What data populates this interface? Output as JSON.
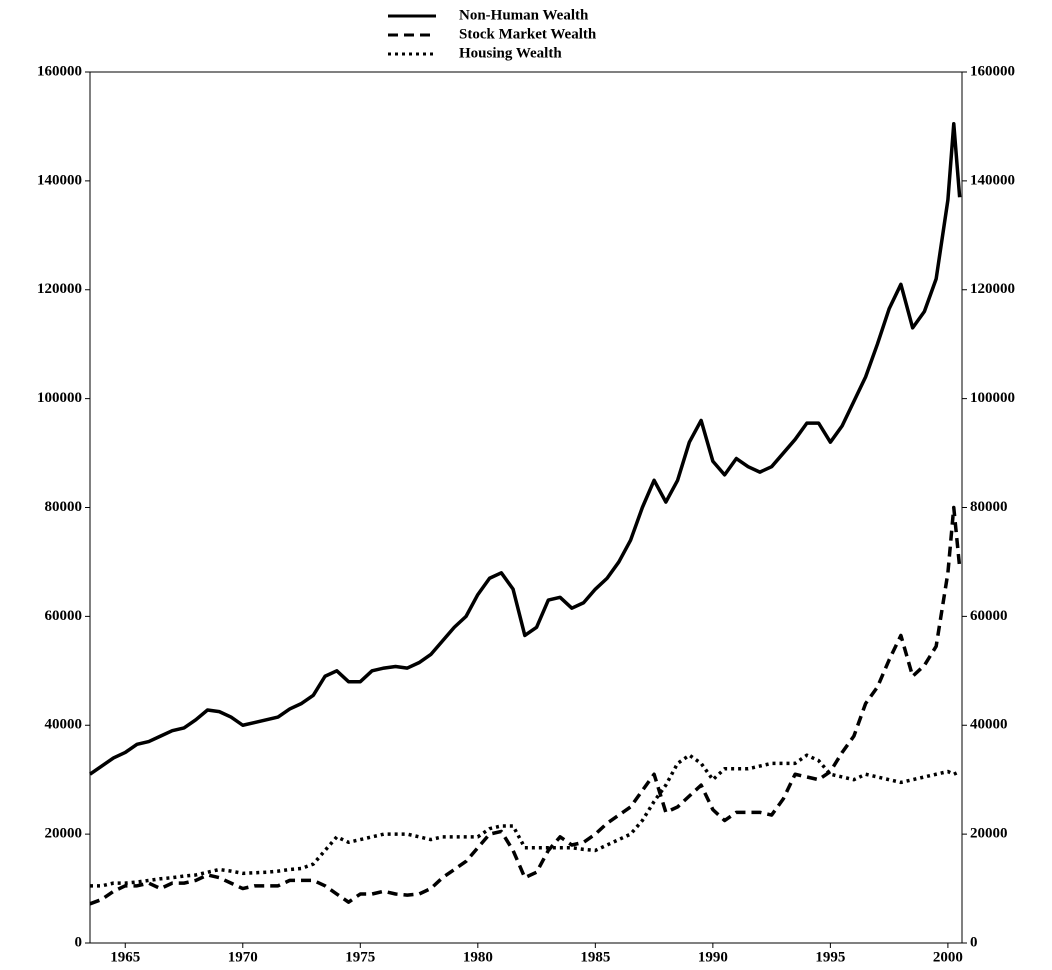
{
  "chart_data": {
    "type": "line",
    "x": [
      1963.5,
      1964,
      1964.5,
      1965,
      1965.5,
      1966,
      1966.5,
      1967,
      1967.5,
      1968,
      1968.5,
      1969,
      1969.5,
      1970,
      1970.5,
      1971,
      1971.5,
      1972,
      1972.5,
      1973,
      1973.5,
      1974,
      1974.5,
      1975,
      1975.5,
      1976,
      1976.5,
      1977,
      1977.5,
      1978,
      1978.5,
      1979,
      1979.5,
      1980,
      1980.5,
      1981,
      1981.5,
      1982,
      1982.5,
      1983,
      1983.5,
      1984,
      1984.5,
      1985,
      1985.5,
      1986,
      1986.5,
      1987,
      1987.5,
      1988,
      1988.5,
      1989,
      1989.5,
      1990,
      1990.5,
      1991,
      1991.5,
      1992,
      1992.5,
      1993,
      1993.5,
      1994,
      1994.5,
      1995,
      1995.5,
      1996,
      1996.5,
      1997,
      1997.5,
      1998,
      1998.5,
      1999,
      1999.5,
      2000,
      2000.25,
      2000.5
    ],
    "series": [
      {
        "name": "Non-Human Wealth",
        "color": "#000000",
        "style": "solid",
        "values": [
          31000,
          32500,
          34000,
          35000,
          36500,
          37000,
          38000,
          39000,
          39500,
          41000,
          42800,
          42500,
          41500,
          40000,
          40500,
          41000,
          41500,
          43000,
          44000,
          45500,
          49000,
          50000,
          48000,
          48000,
          50000,
          50500,
          50800,
          50500,
          51500,
          53000,
          55500,
          58000,
          60000,
          64000,
          67000,
          68000,
          65000,
          56500,
          58000,
          63000,
          63500,
          61500,
          62500,
          65000,
          67000,
          70000,
          74000,
          80000,
          85000,
          81000,
          85000,
          92000,
          96000,
          88500,
          86000,
          89000,
          87500,
          86500,
          87500,
          90000,
          92500,
          95500,
          95500,
          92000,
          95000,
          99500,
          104000,
          110000,
          116500,
          121000,
          113000,
          116000,
          122000,
          136500,
          150500,
          137000
        ]
      },
      {
        "name": "Stock Market Wealth",
        "color": "#000000",
        "style": "dashed",
        "values": [
          7200,
          8000,
          9500,
          10500,
          10500,
          11000,
          10000,
          11000,
          11000,
          11500,
          12500,
          12000,
          11000,
          10000,
          10500,
          10500,
          10500,
          11500,
          11500,
          11500,
          10500,
          9000,
          7500,
          9000,
          9000,
          9500,
          9000,
          8800,
          9000,
          10000,
          12000,
          13500,
          15000,
          17500,
          20000,
          20500,
          17000,
          12000,
          13000,
          17000,
          19500,
          18000,
          18500,
          20000,
          22000,
          23500,
          25000,
          28000,
          31000,
          24000,
          25000,
          27000,
          29000,
          24500,
          22500,
          24000,
          24000,
          24000,
          23500,
          26500,
          31000,
          30500,
          30000,
          31500,
          35000,
          38000,
          44000,
          47000,
          52000,
          56500,
          49000,
          51000,
          54500,
          68000,
          80000,
          69000
        ]
      },
      {
        "name": "Housing Wealth",
        "color": "#000000",
        "style": "dotted",
        "values": [
          10500,
          10500,
          11000,
          11000,
          11200,
          11500,
          11800,
          12000,
          12300,
          12500,
          13000,
          13500,
          13200,
          12800,
          12900,
          13000,
          13200,
          13500,
          13700,
          14500,
          17000,
          19500,
          18500,
          19000,
          19500,
          20000,
          20000,
          20000,
          19500,
          19000,
          19500,
          19500,
          19500,
          19500,
          21000,
          21500,
          21500,
          17500,
          17500,
          17500,
          17500,
          17500,
          17200,
          17000,
          18000,
          19000,
          20000,
          22500,
          26000,
          29000,
          33000,
          34500,
          33000,
          30000,
          32000,
          32000,
          32000,
          32500,
          33000,
          33000,
          33000,
          34500,
          33500,
          31000,
          30500,
          30000,
          31000,
          30500,
          30000,
          29500,
          30000,
          30500,
          31000,
          31500,
          31000,
          31500
        ]
      }
    ],
    "xlim": [
      1963.5,
      2000.6
    ],
    "xticks": [
      1965,
      1970,
      1975,
      1980,
      1985,
      1990,
      1995,
      2000
    ],
    "ylim": [
      0,
      160000
    ],
    "yticks": [
      0,
      20000,
      40000,
      60000,
      80000,
      100000,
      120000,
      140000,
      160000
    ],
    "y2lim": [
      0,
      160000
    ],
    "y2ticks": [
      0,
      20000,
      40000,
      60000,
      80000,
      100000,
      120000,
      140000,
      160000
    ],
    "legend": "top",
    "grid": false
  }
}
